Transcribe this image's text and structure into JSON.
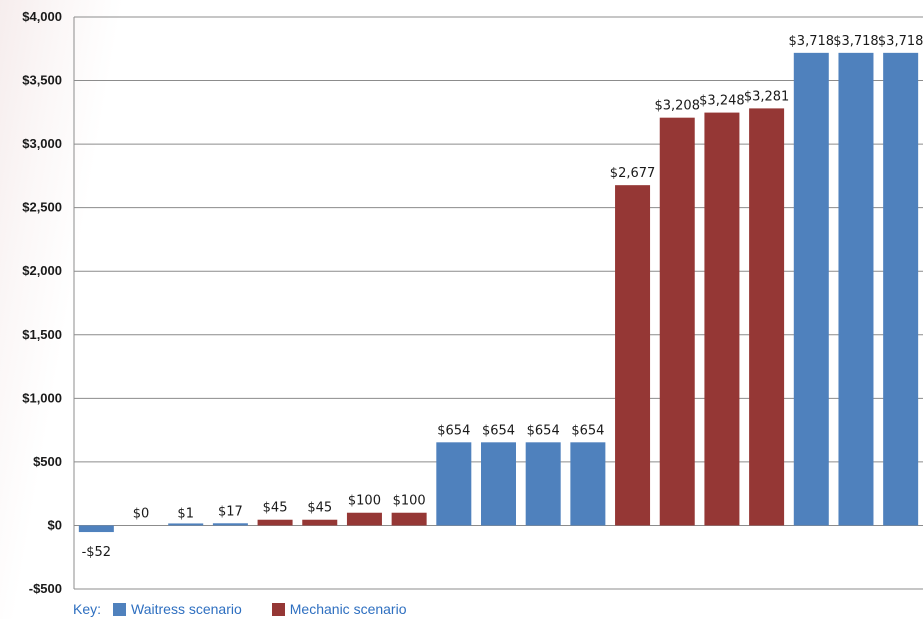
{
  "chart_data": {
    "type": "bar",
    "title": "",
    "xlabel": "",
    "ylabel": "",
    "ylim": [
      -500,
      4000
    ],
    "yticks": [
      -500,
      0,
      500,
      1000,
      1500,
      2000,
      2500,
      3000,
      3500,
      4000
    ],
    "ytick_labels": [
      "-$500",
      "$0",
      "$500",
      "$1,000",
      "$1,500",
      "$2,000",
      "$2,500",
      "$3,000",
      "$3,500",
      "$4,000"
    ],
    "grid": true,
    "values": [
      -52,
      0,
      1,
      17,
      45,
      45,
      100,
      100,
      654,
      654,
      654,
      654,
      2677,
      3208,
      3248,
      3281,
      3718,
      3718,
      3718
    ],
    "labels": [
      "-$52",
      "$0",
      "$1",
      "$17",
      "$45",
      "$45",
      "$100",
      "$100",
      "$654",
      "$654",
      "$654",
      "$654",
      "$2,677",
      "$3,208",
      "$3,248",
      "$3,281",
      "$3,718",
      "$3,718",
      "$3,718"
    ],
    "series_index": [
      0,
      0,
      0,
      0,
      1,
      1,
      1,
      1,
      0,
      0,
      0,
      0,
      1,
      1,
      1,
      1,
      0,
      0,
      0
    ],
    "series": [
      {
        "name": "Waitress scenario",
        "color": "#4f81bd"
      },
      {
        "name": "Mechanic scenario",
        "color": "#953735"
      }
    ],
    "legend_position": "bottom-left"
  },
  "legend": {
    "key_label": "Key:",
    "items": [
      {
        "label": "Waitress scenario",
        "color": "#4f81bd"
      },
      {
        "label": "Mechanic scenario",
        "color": "#953735"
      }
    ]
  }
}
